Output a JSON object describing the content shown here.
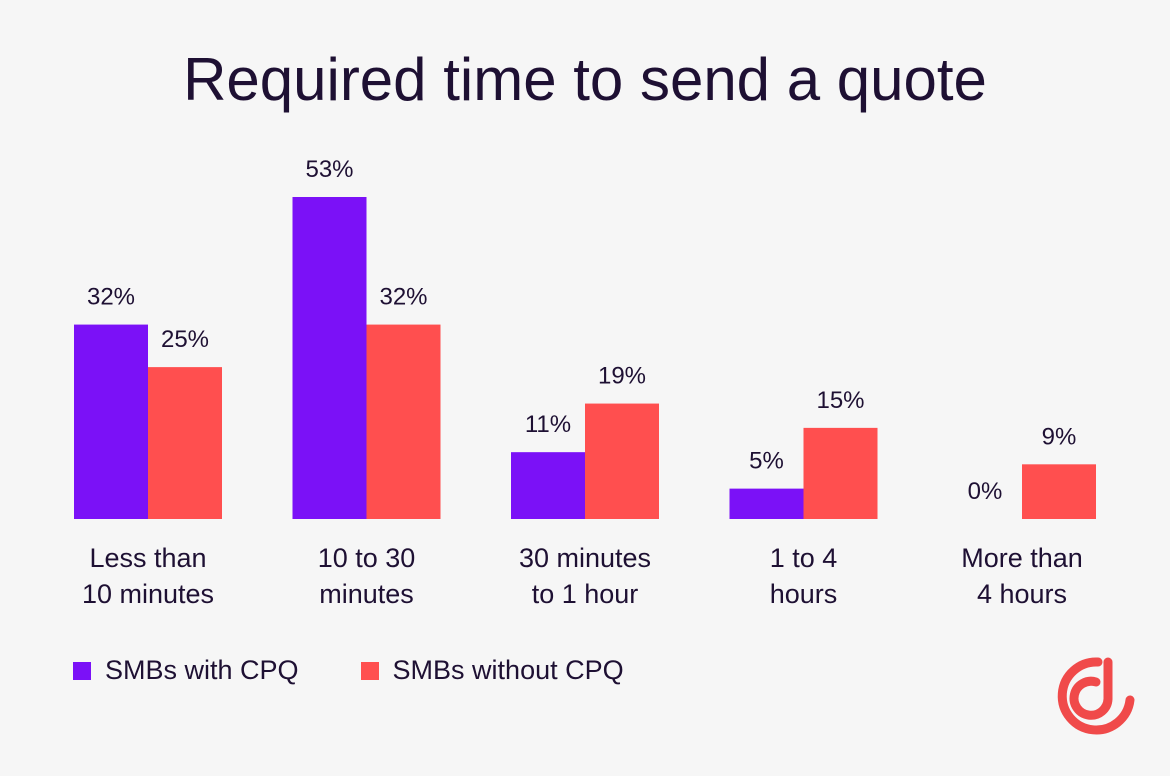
{
  "title": "Required time to send a quote",
  "colors": {
    "with_cpq": "#7b11f7",
    "without_cpq": "#ff4f4f",
    "text": "#1e1033",
    "logo": "#f04a4a"
  },
  "legend": {
    "with_cpq": "SMBs with CPQ",
    "without_cpq": "SMBs without CPQ"
  },
  "logo": {
    "icon": "company-logo-icon"
  },
  "chart_data": {
    "type": "bar",
    "title": "Required time to send a quote",
    "xlabel": "",
    "ylabel": "",
    "ylim": [
      0,
      53
    ],
    "grid": false,
    "legend_position": "bottom-left",
    "categories": [
      [
        "Less than",
        "10 minutes"
      ],
      [
        "10 to 30",
        "minutes"
      ],
      [
        "30 minutes",
        "to 1 hour"
      ],
      [
        "1 to 4",
        "hours"
      ],
      [
        "More than",
        "4 hours"
      ]
    ],
    "series": [
      {
        "name": "SMBs with CPQ",
        "values": [
          32,
          53,
          11,
          5,
          0
        ],
        "labels": [
          "32%",
          "53%",
          "11%",
          "5%",
          "0%"
        ]
      },
      {
        "name": "SMBs without CPQ",
        "values": [
          25,
          32,
          19,
          15,
          9
        ],
        "labels": [
          "25%",
          "32%",
          "19%",
          "15%",
          "9%"
        ]
      }
    ]
  }
}
